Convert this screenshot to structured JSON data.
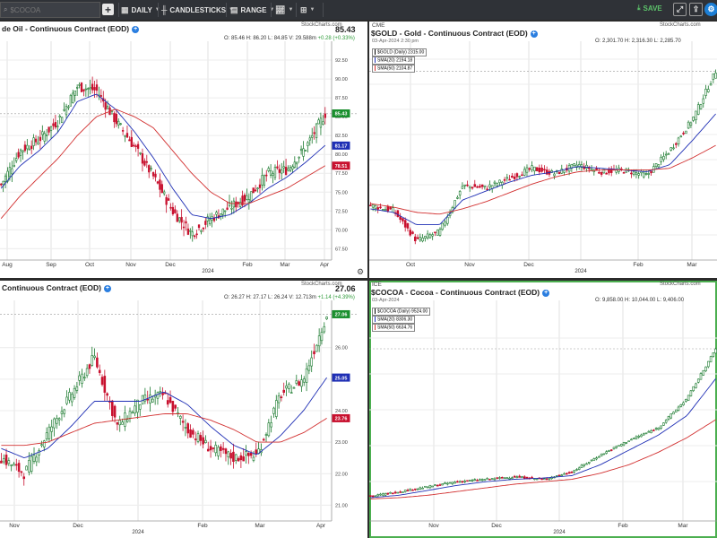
{
  "toolbar": {
    "search_placeholder": "$COCOA",
    "period_label": "DAILY",
    "style_label": "CANDLESTICKS",
    "range_label": "RANGE",
    "save_label": "SAVE"
  },
  "panels": {
    "crude": {
      "title": "de Oil - Continuous Contract (EOD)",
      "last": "85.43",
      "ohlc": "O: 85.46    H: 86.20    L: 84.85    V: 29.588m",
      "change": "+0.28 (+0.33%)",
      "brand": "StockCharts.com",
      "price_tag": "85.43",
      "sma20_tag": "81.17",
      "sma50_tag": "78.51"
    },
    "gold": {
      "exchange": "CME",
      "title": "$GOLD - Gold - Continuous Contract (EOD)",
      "date": "03-Apr-2024 2:30 pm",
      "ohlc": "O: 2,301.70    H: 2,316.30    L: 2,285.70",
      "brand": "StockCharts.com",
      "legend": [
        "$GOLD (Daily) 2315.00",
        "SMA(20) 2194.18",
        "SMA(50) 2104.87"
      ]
    },
    "silver": {
      "title": "Continuous Contract (EOD)",
      "last": "27.06",
      "ohlc": "O: 26.27    H: 27.17    L: 26.24    V: 12.713m",
      "change": "+1.14 (+4.39%)",
      "brand": "StockCharts.com",
      "price_tag": "27.06",
      "sma20_tag": "25.05",
      "sma50_tag": "23.76"
    },
    "cocoa": {
      "exchange": "ICE",
      "title": "$COCOA - Cocoa - Continuous Contract (EOD)",
      "date": "03-Apr-2024",
      "ohlc": "O: 9,858.00    H: 10,044.00    L: 9,406.00",
      "brand": "StockCharts.com",
      "legend": [
        "$COCOA (Daily) 9524.00",
        "SMA(20) 8306.30",
        "SMA(50) 6634.76"
      ]
    }
  },
  "chart_data": [
    {
      "type": "candlestick",
      "title": "de Oil - Continuous Contract (EOD)",
      "x_ticks": [
        "Aug",
        "Sep",
        "Oct",
        "Nov",
        "Dec",
        "2024",
        "Feb",
        "Mar",
        "Apr"
      ],
      "y_ticks": [
        "92.50",
        "90.00",
        "87.50",
        "85.00",
        "82.50",
        "80.00",
        "77.50",
        "75.00",
        "72.50",
        "70.00",
        "67.50"
      ],
      "ylim": [
        66,
        95
      ],
      "series": [
        {
          "name": "Price",
          "x": [
            "Jul",
            "Aug",
            "Aug",
            "Sep",
            "Sep",
            "Oct",
            "Oct",
            "Nov",
            "Nov",
            "Dec",
            "Dec",
            "Jan",
            "Jan",
            "Feb",
            "Feb",
            "Mar",
            "Mar",
            "Apr"
          ],
          "values": [
            76.0,
            80.5,
            82.0,
            84.5,
            89.0,
            88.5,
            84.5,
            81.0,
            77.0,
            72.5,
            69.5,
            71.5,
            73.0,
            74.5,
            77.5,
            78.0,
            81.0,
            85.4
          ]
        },
        {
          "name": "SMA(20)",
          "values": [
            75.5,
            78.5,
            80.5,
            83.0,
            87.0,
            88.0,
            86.0,
            83.0,
            79.5,
            75.5,
            72.0,
            71.5,
            72.0,
            73.5,
            75.5,
            77.0,
            79.0,
            81.2
          ]
        },
        {
          "name": "SMA(50)",
          "values": [
            71.5,
            74.5,
            77.0,
            79.5,
            82.5,
            85.0,
            86.0,
            85.0,
            83.5,
            80.5,
            77.5,
            75.0,
            73.5,
            73.5,
            74.5,
            75.5,
            77.0,
            78.5
          ]
        }
      ]
    },
    {
      "type": "candlestick",
      "title": "$GOLD - Gold - Continuous Contract (EOD)",
      "x_ticks": [
        "Oct",
        "Nov",
        "Dec",
        "2024",
        "Feb",
        "Mar"
      ],
      "series": [
        {
          "name": "$GOLD (Daily)",
          "x": [
            "Sep",
            "Sep",
            "Oct",
            "Oct",
            "Oct",
            "Nov",
            "Nov",
            "Dec",
            "Dec",
            "Jan",
            "Jan",
            "Feb",
            "Feb",
            "Mar",
            "Mar",
            "Apr"
          ],
          "values": [
            1935,
            1920,
            1835,
            1860,
            1990,
            1985,
            2010,
            2040,
            2025,
            2050,
            2030,
            2035,
            2020,
            2090,
            2180,
            2315
          ]
        },
        {
          "name": "SMA(20)",
          "values": [
            1925,
            1915,
            1880,
            1880,
            1950,
            1975,
            2000,
            2020,
            2030,
            2045,
            2040,
            2035,
            2030,
            2050,
            2120,
            2194.18
          ]
        },
        {
          "name": "SMA(50)",
          "values": [
            1940,
            1930,
            1915,
            1910,
            1925,
            1945,
            1970,
            1995,
            2015,
            2030,
            2035,
            2035,
            2035,
            2040,
            2070,
            2104.87
          ]
        }
      ]
    },
    {
      "type": "candlestick",
      "title": "Continuous Contract (EOD)",
      "x_ticks": [
        "Nov",
        "Dec",
        "2024",
        "Feb",
        "Mar",
        "Apr"
      ],
      "y_ticks": [
        "26.00",
        "25.00",
        "24.00",
        "23.00",
        "22.00",
        "21.00"
      ],
      "ylim": [
        20.5,
        27.5
      ],
      "series": [
        {
          "name": "Price",
          "x": [
            "Oct",
            "Oct",
            "Nov",
            "Nov",
            "Dec",
            "Dec",
            "Dec",
            "Jan",
            "Jan",
            "Feb",
            "Feb",
            "Mar",
            "Mar",
            "Mar",
            "Apr"
          ],
          "values": [
            22.5,
            22.0,
            23.3,
            24.5,
            25.7,
            23.5,
            24.3,
            24.5,
            23.4,
            22.8,
            22.5,
            22.6,
            24.5,
            25.0,
            27.06
          ]
        },
        {
          "name": "SMA(20)",
          "values": [
            22.8,
            22.5,
            22.8,
            23.5,
            24.3,
            24.3,
            24.3,
            24.6,
            24.2,
            23.5,
            22.9,
            22.6,
            23.2,
            24.0,
            25.05
          ]
        },
        {
          "name": "SMA(50)",
          "values": [
            22.9,
            22.9,
            23.0,
            23.3,
            23.6,
            23.7,
            23.8,
            23.9,
            23.9,
            23.7,
            23.4,
            23.0,
            23.0,
            23.3,
            23.76
          ]
        }
      ]
    },
    {
      "type": "candlestick",
      "title": "$COCOA - Cocoa - Continuous Contract (EOD)",
      "x_ticks": [
        "Nov",
        "Dec",
        "2024",
        "Feb",
        "Mar"
      ],
      "series": [
        {
          "name": "$COCOA (Daily)",
          "x": [
            "Oct",
            "Oct",
            "Nov",
            "Nov",
            "Dec",
            "Dec",
            "Jan",
            "Jan",
            "Feb",
            "Feb",
            "Mar",
            "Mar",
            "Apr"
          ],
          "values": [
            3500,
            3700,
            3900,
            4100,
            4200,
            4300,
            4200,
            4500,
            5200,
            5800,
            6300,
            7500,
            9524
          ]
        },
        {
          "name": "SMA(20)",
          "values": [
            3450,
            3550,
            3750,
            3950,
            4100,
            4200,
            4250,
            4350,
            4800,
            5400,
            6000,
            6800,
            8306.3
          ]
        },
        {
          "name": "SMA(50)",
          "values": [
            3400,
            3450,
            3550,
            3700,
            3850,
            4000,
            4100,
            4200,
            4450,
            4800,
            5300,
            5900,
            6634.76
          ]
        }
      ]
    }
  ]
}
